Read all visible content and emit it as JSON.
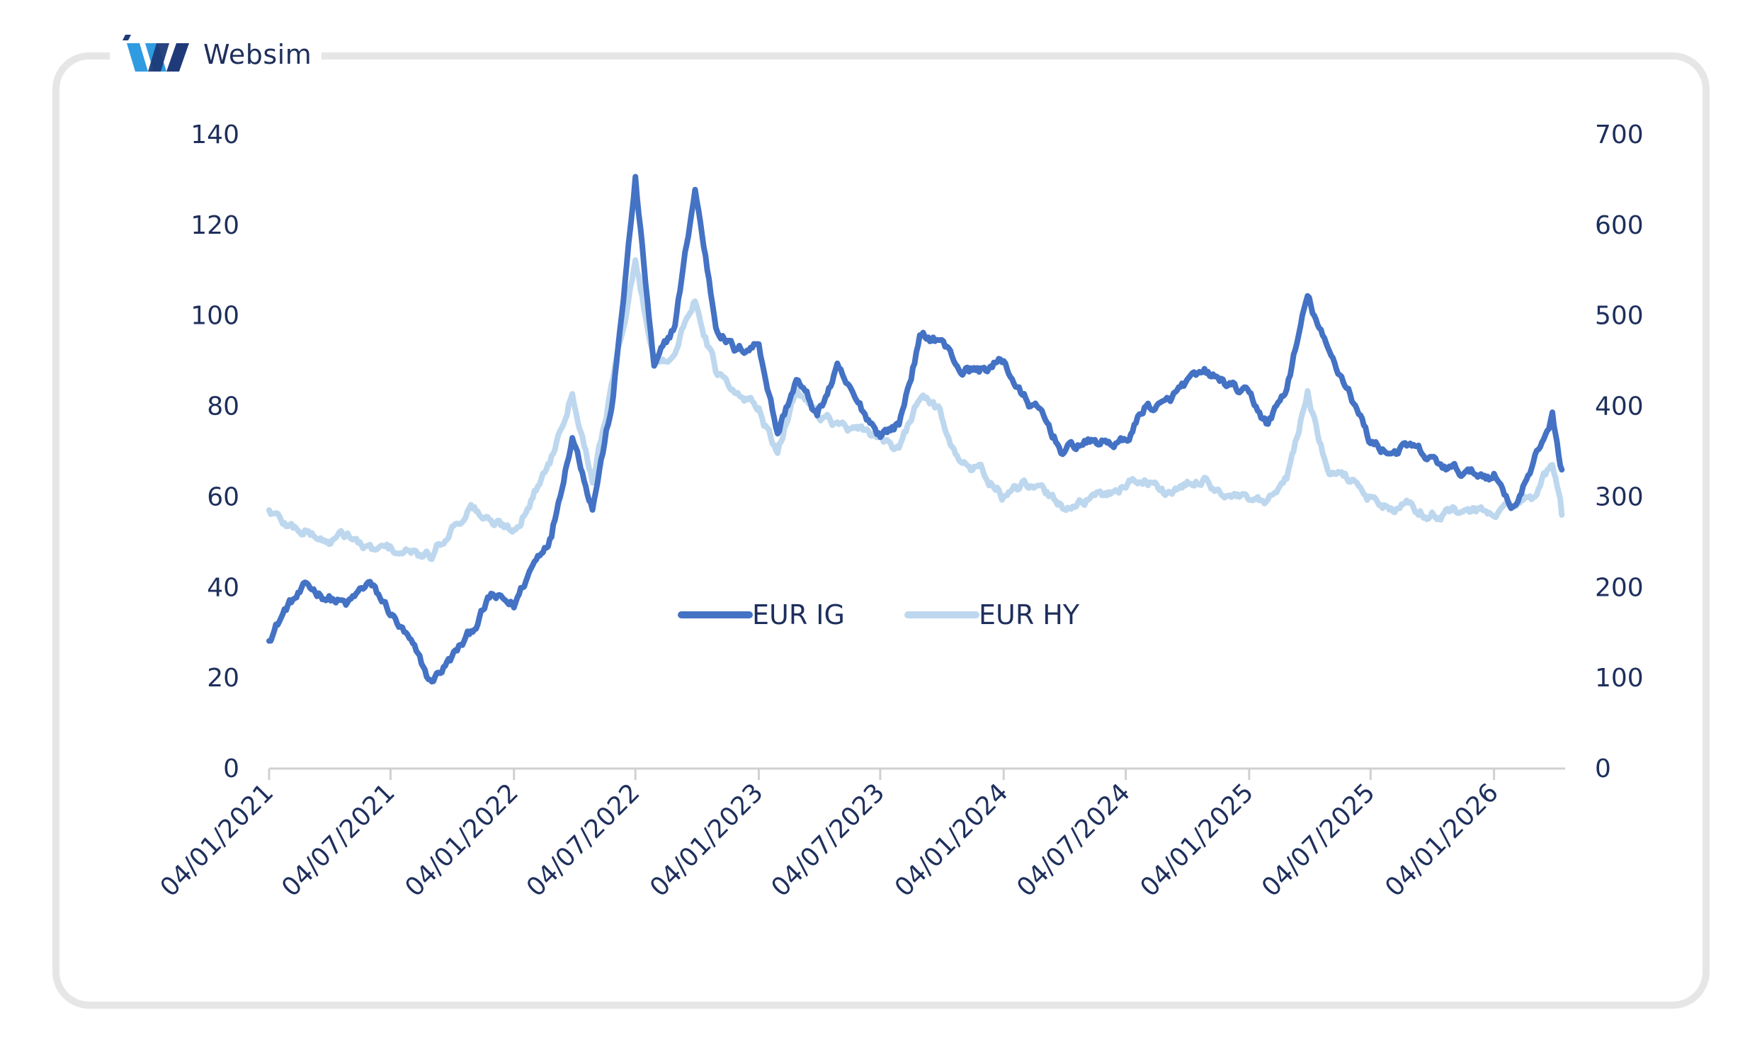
{
  "brand": {
    "name": "Websim",
    "logo_icon": "websim-w-logo-icon",
    "colors": {
      "light": "#2f9be0",
      "dark": "#1e3a78"
    }
  },
  "chart_data": {
    "type": "line",
    "title": "",
    "x_dates": [
      "2021-01-04",
      "2021-02-01",
      "2021-03-01",
      "2021-04-01",
      "2021-05-01",
      "2021-06-01",
      "2021-07-01",
      "2021-08-01",
      "2021-09-01",
      "2021-10-01",
      "2021-11-01",
      "2021-12-01",
      "2022-01-04",
      "2022-02-01",
      "2022-03-01",
      "2022-04-01",
      "2022-05-01",
      "2022-06-01",
      "2022-07-04",
      "2022-08-01",
      "2022-09-01",
      "2022-10-01",
      "2022-11-01",
      "2022-12-01",
      "2023-01-04",
      "2023-02-01",
      "2023-03-01",
      "2023-04-01",
      "2023-05-01",
      "2023-06-01",
      "2023-07-04",
      "2023-08-01",
      "2023-09-01",
      "2023-10-01",
      "2023-11-01",
      "2023-12-01",
      "2024-01-04",
      "2024-02-01",
      "2024-03-01",
      "2024-04-01",
      "2024-05-01",
      "2024-06-01",
      "2024-07-04",
      "2024-08-01",
      "2024-09-01",
      "2024-10-01",
      "2024-11-01",
      "2024-12-01",
      "2025-01-04",
      "2025-02-01",
      "2025-03-01",
      "2025-04-01",
      "2025-05-01",
      "2025-06-01",
      "2025-07-04",
      "2025-08-01",
      "2025-09-01",
      "2025-10-01",
      "2025-11-01",
      "2025-12-01",
      "2026-01-04",
      "2026-02-01",
      "2026-03-01",
      "2026-04-01",
      "2026-04-15"
    ],
    "x_ticks": [
      "04/01/2021",
      "04/07/2021",
      "04/01/2022",
      "04/07/2022",
      "04/01/2023",
      "04/07/2023",
      "04/01/2024",
      "04/07/2024",
      "04/01/2025",
      "04/07/2025",
      "04/01/2026"
    ],
    "x_range": [
      "2021-01-04",
      "2026-04-20"
    ],
    "y_left": {
      "ticks": [
        0,
        20,
        40,
        60,
        80,
        100,
        120,
        140
      ],
      "range": [
        0,
        140
      ]
    },
    "y_right": {
      "ticks": [
        0,
        100,
        200,
        300,
        400,
        500,
        600,
        700
      ],
      "range": [
        0,
        700
      ]
    },
    "legend_position": "center",
    "series": [
      {
        "name": "EUR IG",
        "axis": "left",
        "color": "#4472c4",
        "values": [
          29,
          36,
          40,
          38,
          36,
          41,
          35,
          28,
          19,
          24,
          30,
          38,
          36,
          45,
          52,
          74,
          58,
          82,
          130,
          88,
          98,
          128,
          98,
          92,
          94,
          74,
          86,
          78,
          88,
          80,
          74,
          76,
          95,
          95,
          88,
          88,
          90,
          82,
          78,
          70,
          72,
          72,
          72,
          80,
          80,
          85,
          87,
          85,
          82,
          76,
          84,
          104,
          92,
          84,
          72,
          70,
          71,
          68,
          66,
          65,
          65,
          58,
          66,
          78,
          66
        ]
      },
      {
        "name": "EUR HY",
        "axis": "right",
        "color": "#bdd7ee",
        "values": [
          285,
          268,
          262,
          250,
          258,
          240,
          242,
          238,
          232,
          265,
          290,
          270,
          265,
          300,
          345,
          420,
          320,
          430,
          560,
          450,
          460,
          520,
          440,
          410,
          400,
          345,
          420,
          395,
          380,
          370,
          368,
          350,
          410,
          395,
          335,
          330,
          300,
          310,
          305,
          290,
          295,
          300,
          315,
          320,
          305,
          310,
          320,
          300,
          295,
          290,
          320,
          415,
          325,
          320,
          300,
          285,
          290,
          280,
          285,
          285,
          280,
          290,
          300,
          335,
          280
        ]
      }
    ]
  }
}
